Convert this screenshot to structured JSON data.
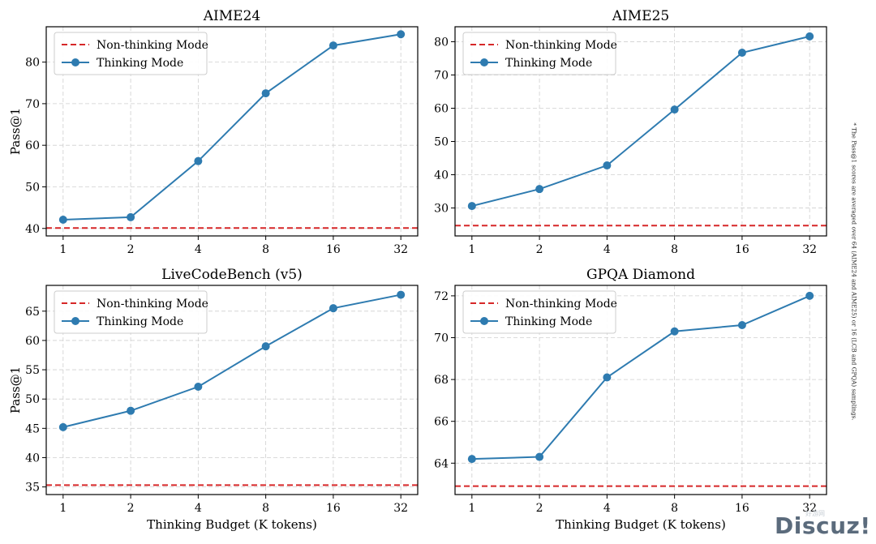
{
  "footnote": "* The Pass@1 scores are averaged over 64 (AIME24 and AIME25) or 16 (LCB and GPQA) samplings.",
  "watermark": {
    "text": "Discuz!",
    "sub": "好游网"
  },
  "colors": {
    "thinking": "#2e7bb0",
    "nonthinking": "#d62728",
    "grid": "#cfcfcf",
    "axis": "#000000"
  },
  "chart_data": [
    {
      "type": "line",
      "title": "AIME24",
      "xlabel": "",
      "ylabel": "Pass@1",
      "x": [
        1,
        2,
        4,
        8,
        16,
        32
      ],
      "xscale": "log2",
      "yticks": [
        40,
        50,
        60,
        70,
        80
      ],
      "ylim": [
        38.2,
        88.5
      ],
      "legend_position": "top-left",
      "grid": true,
      "series": [
        {
          "name": "Non-thinking Mode",
          "style": "dashed",
          "color": "#d62728",
          "hline": 40.1
        },
        {
          "name": "Thinking Mode",
          "style": "solid-markers",
          "color": "#2e7bb0",
          "values": [
            42.1,
            42.7,
            56.2,
            72.5,
            84.0,
            86.7
          ]
        }
      ]
    },
    {
      "type": "line",
      "title": "AIME25",
      "xlabel": "",
      "ylabel": "",
      "x": [
        1,
        2,
        4,
        8,
        16,
        32
      ],
      "xscale": "log2",
      "yticks": [
        30,
        40,
        50,
        60,
        70,
        80
      ],
      "ylim": [
        21.6,
        84.5
      ],
      "legend_position": "top-left",
      "grid": true,
      "series": [
        {
          "name": "Non-thinking Mode",
          "style": "dashed",
          "color": "#d62728",
          "hline": 24.7
        },
        {
          "name": "Thinking Mode",
          "style": "solid-markers",
          "color": "#2e7bb0",
          "values": [
            30.6,
            35.7,
            42.8,
            59.6,
            76.7,
            81.6
          ]
        }
      ]
    },
    {
      "type": "line",
      "title": "LiveCodeBench (v5)",
      "xlabel": "Thinking Budget (K tokens)",
      "ylabel": "Pass@1",
      "x": [
        1,
        2,
        4,
        8,
        16,
        32
      ],
      "xscale": "log2",
      "yticks": [
        35,
        40,
        45,
        50,
        55,
        60,
        65
      ],
      "ylim": [
        33.7,
        69.4
      ],
      "legend_position": "top-left",
      "grid": true,
      "series": [
        {
          "name": "Non-thinking Mode",
          "style": "dashed",
          "color": "#d62728",
          "hline": 35.3
        },
        {
          "name": "Thinking Mode",
          "style": "solid-markers",
          "color": "#2e7bb0",
          "values": [
            45.2,
            48.0,
            52.1,
            59.0,
            65.5,
            67.8
          ]
        }
      ]
    },
    {
      "type": "line",
      "title": "GPQA Diamond",
      "xlabel": "Thinking Budget (K tokens)",
      "ylabel": "",
      "x": [
        1,
        2,
        4,
        8,
        16,
        32
      ],
      "xscale": "log2",
      "yticks": [
        64,
        66,
        68,
        70,
        72
      ],
      "ylim": [
        62.5,
        72.5
      ],
      "legend_position": "top-left",
      "grid": true,
      "series": [
        {
          "name": "Non-thinking Mode",
          "style": "dashed",
          "color": "#d62728",
          "hline": 62.9
        },
        {
          "name": "Thinking Mode",
          "style": "solid-markers",
          "color": "#2e7bb0",
          "values": [
            64.2,
            64.3,
            68.1,
            70.3,
            70.6,
            72.0
          ]
        }
      ]
    }
  ]
}
